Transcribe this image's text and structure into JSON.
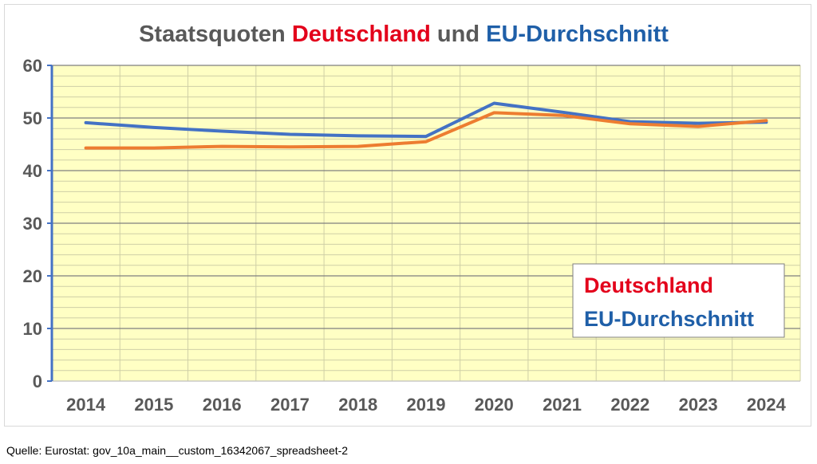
{
  "chart_data": {
    "type": "line",
    "title": {
      "prefix": "Staatsquoten ",
      "part1": "Deutschland",
      "middle": " und ",
      "part2": "EU-Durchschnitt"
    },
    "categories": [
      "2014",
      "2015",
      "2016",
      "2017",
      "2018",
      "2019",
      "2020",
      "2021",
      "2022",
      "2023",
      "2024"
    ],
    "yticks": [
      "0",
      "10",
      "20",
      "30",
      "40",
      "50",
      "60"
    ],
    "ylim": [
      0,
      60
    ],
    "grid": true,
    "legend_position": "bottom-right",
    "series": [
      {
        "name": "EU-Durchschnitt",
        "color": "#4472c4",
        "values": [
          49.1,
          48.2,
          47.5,
          46.9,
          46.6,
          46.5,
          52.8,
          51.1,
          49.3,
          49.0,
          49.2
        ]
      },
      {
        "name": "Deutschland",
        "color": "#ed7d31",
        "values": [
          44.3,
          44.3,
          44.6,
          44.5,
          44.6,
          45.5,
          51.0,
          50.5,
          48.9,
          48.4,
          49.5
        ]
      }
    ],
    "legend": {
      "entry1": "Deutschland",
      "entry2": "EU-Durchschnitt"
    }
  },
  "colors": {
    "title_gray": "#595959",
    "deutschland_text": "#e3001b",
    "eu_text": "#1f5fa8",
    "plot_background": "#ffffc4",
    "axis": "#4472c4"
  },
  "source": "Quelle: Eurostat:  gov_10a_main__custom_16342067_spreadsheet-2"
}
